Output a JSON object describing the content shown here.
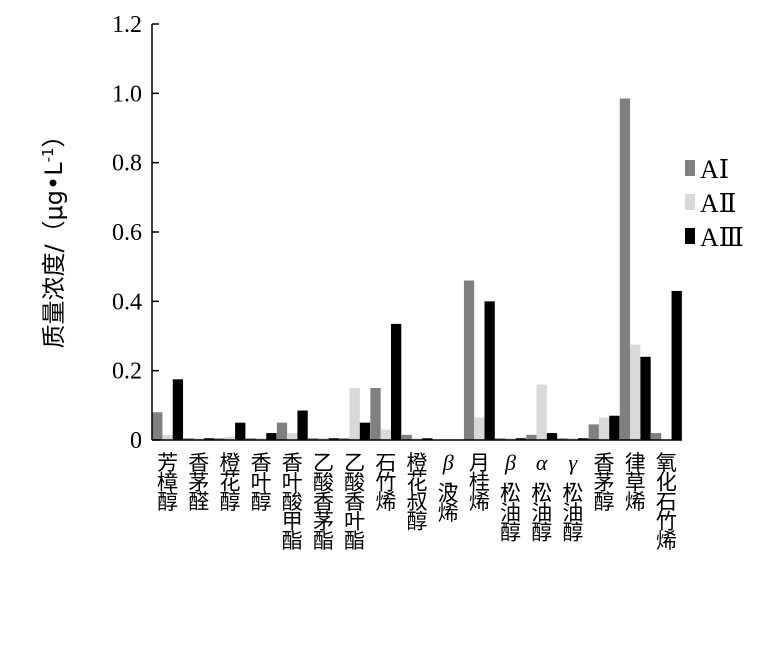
{
  "chart_data": {
    "type": "bar",
    "title": "",
    "xlabel": "",
    "ylabel": "质量浓度/（μg•L",
    "ylabel_sup": "-1",
    "ylabel_tail": "）",
    "ylim": [
      0,
      1.2
    ],
    "yticks": [
      "0",
      "0.2",
      "0.4",
      "0.6",
      "0.8",
      "1.0",
      "1.2"
    ],
    "grid": false,
    "legend_position": "right",
    "categories": [
      {
        "prefix": "",
        "text": "芳樟醇"
      },
      {
        "prefix": "",
        "text": "香茅醛"
      },
      {
        "prefix": "",
        "text": "橙花醇"
      },
      {
        "prefix": "",
        "text": "香叶醇"
      },
      {
        "prefix": "",
        "text": "香叶酸甲酯"
      },
      {
        "prefix": "",
        "text": "乙酸香茅酯"
      },
      {
        "prefix": "",
        "text": "乙酸香叶酯"
      },
      {
        "prefix": "",
        "text": "石竹烯"
      },
      {
        "prefix": "",
        "text": "橙花叔醇"
      },
      {
        "prefix": "β",
        "text": "-波烯"
      },
      {
        "prefix": "",
        "text": "月桂烯"
      },
      {
        "prefix": "β",
        "text": "-松油醇"
      },
      {
        "prefix": "α",
        "text": "-松油醇"
      },
      {
        "prefix": "γ",
        "text": "-松油醇"
      },
      {
        "prefix": "",
        "text": "香茅醇"
      },
      {
        "prefix": "",
        "text": "律草烯"
      },
      {
        "prefix": "",
        "text": "氧化石竹烯"
      }
    ],
    "series": [
      {
        "name": "AⅠ",
        "color": "#808080",
        "values": [
          0.08,
          0.005,
          0.005,
          0.005,
          0.05,
          0.005,
          0.005,
          0.15,
          0.015,
          0.0,
          0.46,
          0.005,
          0.015,
          0.005,
          0.045,
          0.985,
          0.02
        ]
      },
      {
        "name": "AⅡ",
        "color": "#d9d9d9",
        "values": [
          0.015,
          0.005,
          0.01,
          0.005,
          0.02,
          0.005,
          0.15,
          0.03,
          0.005,
          0.0,
          0.065,
          0.005,
          0.16,
          0.005,
          0.065,
          0.275,
          0.0
        ]
      },
      {
        "name": "AⅢ",
        "color": "#000000",
        "values": [
          0.175,
          0.005,
          0.05,
          0.02,
          0.085,
          0.005,
          0.05,
          0.335,
          0.005,
          0.0,
          0.4,
          0.005,
          0.02,
          0.005,
          0.07,
          0.24,
          0.43
        ]
      }
    ]
  }
}
